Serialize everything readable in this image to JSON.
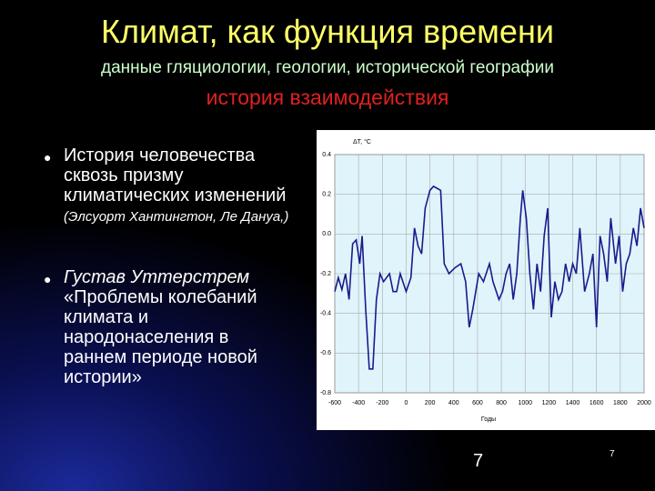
{
  "slide": {
    "title": "Климат, как функция времени",
    "subtitle": "данные гляциологии, геологии, исторической географии",
    "subtitle2": "история взаимодействия",
    "bullets": [
      {
        "text": "История человечества сквозь призму климатических изменений",
        "note": "(Элсуорт Хантингтон, Ле Дануа,)"
      },
      {
        "author": "Густав Уттерстрем",
        "text": "«Проблемы колебаний климата и народонаселения в раннем периоде новой истории»"
      }
    ],
    "page_number": "7",
    "slide_number": "7"
  },
  "chart_data": {
    "type": "line",
    "ylabel": "ΔT, °C",
    "xlabel": "Годы",
    "x": [
      -600,
      -570,
      -540,
      -510,
      -480,
      -450,
      -420,
      -390,
      -370,
      -340,
      -310,
      -280,
      -250,
      -220,
      -190,
      -140,
      -110,
      -80,
      -50,
      0,
      40,
      70,
      100,
      130,
      160,
      200,
      230,
      260,
      290,
      320,
      360,
      410,
      460,
      500,
      530,
      560,
      610,
      650,
      700,
      730,
      780,
      810,
      840,
      870,
      900,
      930,
      960,
      980,
      1010,
      1040,
      1070,
      1100,
      1130,
      1160,
      1190,
      1220,
      1250,
      1280,
      1310,
      1340,
      1370,
      1400,
      1430,
      1460,
      1500,
      1540,
      1570,
      1600,
      1630,
      1660,
      1690,
      1720,
      1760,
      1790,
      1820,
      1850,
      1880,
      1910,
      1940,
      1970,
      2000
    ],
    "series": [
      {
        "name": "ΔT",
        "color": "#1a1a8c",
        "values": [
          -0.29,
          -0.22,
          -0.28,
          -0.2,
          -0.33,
          -0.05,
          -0.03,
          -0.15,
          -0.01,
          -0.38,
          -0.68,
          -0.68,
          -0.33,
          -0.2,
          -0.24,
          -0.2,
          -0.29,
          -0.29,
          -0.2,
          -0.29,
          -0.22,
          0.03,
          -0.06,
          -0.1,
          0.13,
          0.22,
          0.24,
          0.23,
          0.22,
          -0.15,
          -0.2,
          -0.17,
          -0.15,
          -0.24,
          -0.47,
          -0.38,
          -0.2,
          -0.24,
          -0.15,
          -0.24,
          -0.33,
          -0.29,
          -0.2,
          -0.15,
          -0.33,
          -0.2,
          0.08,
          0.22,
          0.08,
          -0.2,
          -0.38,
          -0.15,
          -0.29,
          -0.01,
          0.13,
          -0.42,
          -0.24,
          -0.33,
          -0.29,
          -0.15,
          -0.24,
          -0.15,
          -0.2,
          0.03,
          -0.29,
          -0.2,
          -0.1,
          -0.47,
          -0.01,
          -0.1,
          -0.24,
          0.08,
          -0.15,
          -0.01,
          -0.29,
          -0.15,
          -0.1,
          0.03,
          -0.06,
          0.13,
          0.03
        ]
      }
    ],
    "xlim": [
      -600,
      2000
    ],
    "xticks": [
      -600,
      -400,
      -200,
      0,
      200,
      400,
      600,
      800,
      1000,
      1200,
      1400,
      1600,
      1800,
      2000
    ],
    "ylim": [
      -0.8,
      0.4
    ],
    "yticks": [
      -0.8,
      -0.6,
      -0.4,
      -0.2,
      {
        "value": 0,
        "label": "0.0"
      },
      0.2,
      0.4
    ],
    "grid": true
  }
}
